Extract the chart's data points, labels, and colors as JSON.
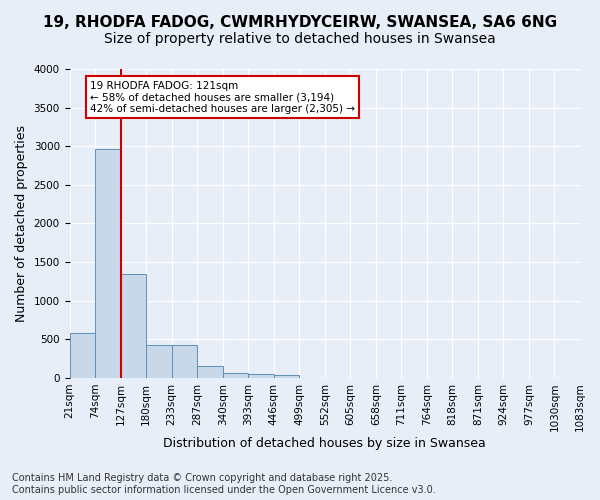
{
  "title_line1": "19, RHODFA FADOG, CWMRHYDYCEIRW, SWANSEA, SA6 6NG",
  "title_line2": "Size of property relative to detached houses in Swansea",
  "xlabel": "Distribution of detached houses by size in Swansea",
  "ylabel": "Number of detached properties",
  "bar_values": [
    580,
    2970,
    1340,
    430,
    430,
    150,
    70,
    50,
    40,
    0,
    0,
    0,
    0,
    0,
    0,
    0,
    0,
    0,
    0
  ],
  "bar_color": "#c8d8e8",
  "bar_edge_color": "#6090b8",
  "tick_labels": [
    "21sqm",
    "74sqm",
    "127sqm",
    "180sqm",
    "233sqm",
    "287sqm",
    "340sqm",
    "393sqm",
    "446sqm",
    "499sqm",
    "552sqm",
    "605sqm",
    "658sqm",
    "711sqm",
    "764sqm",
    "818sqm",
    "871sqm",
    "924sqm",
    "977sqm",
    "1030sqm",
    "1083sqm"
  ],
  "ylim": [
    0,
    4000
  ],
  "yticks": [
    0,
    500,
    1000,
    1500,
    2000,
    2500,
    3000,
    3500,
    4000
  ],
  "vline_color": "#cc0000",
  "vline_pos": 1.5,
  "annotation_text": "19 RHODFA FADOG: 121sqm\n← 58% of detached houses are smaller (3,194)\n42% of semi-detached houses are larger (2,305) →",
  "annotation_box_color": "#cc0000",
  "annotation_box_facecolor": "white",
  "background_color": "#e8eef8",
  "plot_bg_color": "#e8eef8",
  "footer_text": "Contains HM Land Registry data © Crown copyright and database right 2025.\nContains public sector information licensed under the Open Government Licence v3.0.",
  "title_fontsize": 11,
  "subtitle_fontsize": 10,
  "xlabel_fontsize": 9,
  "ylabel_fontsize": 9,
  "tick_fontsize": 7.5,
  "footer_fontsize": 7
}
